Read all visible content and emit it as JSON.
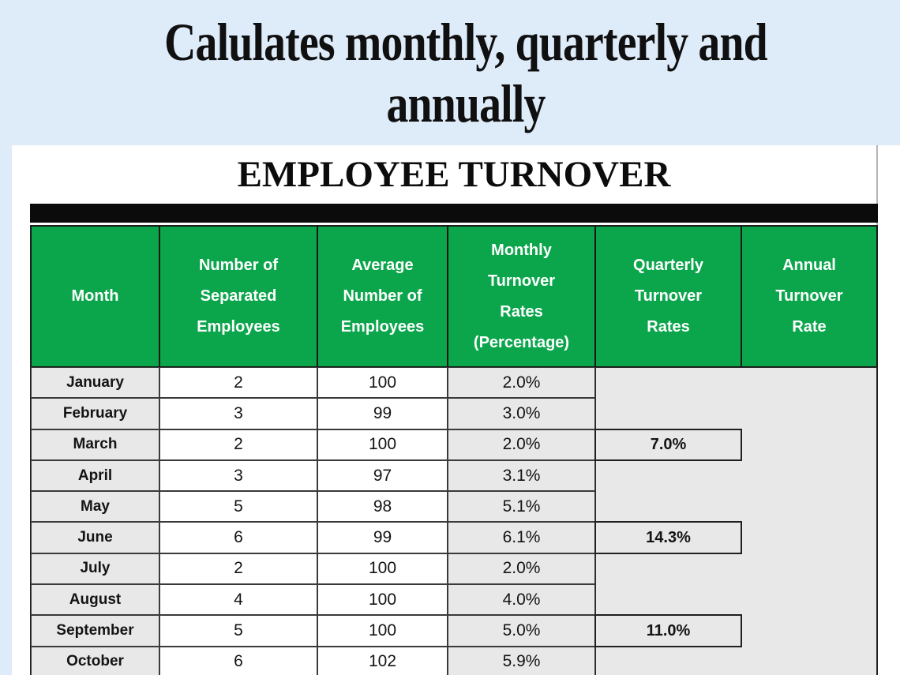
{
  "banner": {
    "title": "Calulates monthly, quarterly and\nannually"
  },
  "sheet": {
    "title": "EMPLOYEE TURNOVER"
  },
  "table": {
    "columns": [
      {
        "key": "month",
        "label": "Month"
      },
      {
        "key": "separated",
        "label": "Number of\nSeparated\nEmployees"
      },
      {
        "key": "average",
        "label": "Average\nNumber of\nEmployees"
      },
      {
        "key": "monthly",
        "label": "Monthly\nTurnover\nRates\n(Percentage)"
      },
      {
        "key": "quarterly",
        "label": "Quarterly\nTurnover\nRates"
      },
      {
        "key": "annual",
        "label": "Annual\nTurnover\nRate"
      }
    ],
    "rows": [
      {
        "month": "January",
        "separated": "2",
        "average": "100",
        "monthly": "2.0%",
        "quarterly": ""
      },
      {
        "month": "February",
        "separated": "3",
        "average": "99",
        "monthly": "3.0%",
        "quarterly": ""
      },
      {
        "month": "March",
        "separated": "2",
        "average": "100",
        "monthly": "2.0%",
        "quarterly": "7.0%"
      },
      {
        "month": "April",
        "separated": "3",
        "average": "97",
        "monthly": "3.1%",
        "quarterly": ""
      },
      {
        "month": "May",
        "separated": "5",
        "average": "98",
        "monthly": "5.1%",
        "quarterly": ""
      },
      {
        "month": "June",
        "separated": "6",
        "average": "99",
        "monthly": "6.1%",
        "quarterly": "14.3%"
      },
      {
        "month": "July",
        "separated": "2",
        "average": "100",
        "monthly": "2.0%",
        "quarterly": ""
      },
      {
        "month": "August",
        "separated": "4",
        "average": "100",
        "monthly": "4.0%",
        "quarterly": ""
      },
      {
        "month": "September",
        "separated": "5",
        "average": "100",
        "monthly": "5.0%",
        "quarterly": "11.0%"
      },
      {
        "month": "October",
        "separated": "6",
        "average": "102",
        "monthly": "5.9%",
        "quarterly": ""
      }
    ],
    "annual_rate_visible": ""
  },
  "colors": {
    "page_background": "#deebf9",
    "panel_background": "#ffffff",
    "header_green": "#0ba64c",
    "cell_gray": "#e8e8e8",
    "black_bar": "#0b0b0b",
    "border_dark": "#1f1f1f",
    "title_text": "#101010",
    "header_text": "#ffffff"
  }
}
